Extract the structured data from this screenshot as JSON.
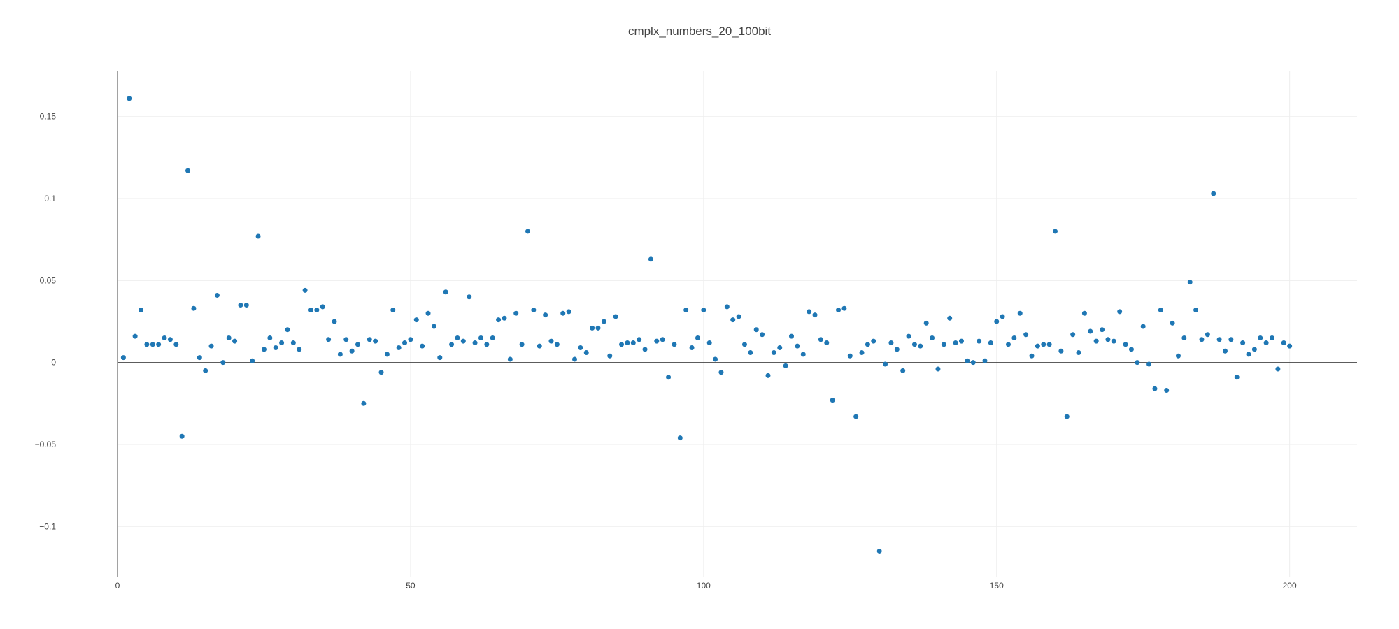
{
  "chart_data": {
    "type": "scatter",
    "title": "cmplx_numbers_20_100bit",
    "xlabel": "",
    "ylabel": "",
    "xlim": [
      0,
      211.5
    ],
    "ylim": [
      -0.131,
      0.178
    ],
    "grid": true,
    "marker_color": "#1f77b4",
    "x_ticks": [
      0,
      50,
      100,
      150,
      200
    ],
    "x_tick_labels": [
      "0",
      "50",
      "100",
      "150",
      "200"
    ],
    "y_ticks": [
      -0.1,
      -0.05,
      0,
      0.05,
      0.1,
      0.15
    ],
    "y_tick_labels": [
      "−0.1",
      "−0.05",
      "0",
      "0.05",
      "0.1",
      "0.15"
    ],
    "series": [
      {
        "x": [
          1,
          2,
          3,
          4,
          5,
          6,
          7,
          8,
          9,
          10,
          11,
          12,
          13,
          14,
          15,
          16,
          17,
          18,
          19,
          20,
          21,
          22,
          23,
          24,
          25,
          26,
          27,
          28,
          29,
          30,
          31,
          32,
          33,
          34,
          35,
          36,
          37,
          38,
          39,
          40,
          41,
          42,
          43,
          44,
          45,
          46,
          47,
          48,
          49,
          50,
          51,
          52,
          53,
          54,
          55,
          56,
          57,
          58,
          59,
          60,
          61,
          62,
          63,
          64,
          65,
          66,
          67,
          68,
          69,
          70,
          71,
          72,
          73,
          74,
          75,
          76,
          77,
          78,
          79,
          80,
          81,
          82,
          83,
          84,
          85,
          86,
          87,
          88,
          89,
          90,
          91,
          92,
          93,
          94,
          95,
          96,
          97,
          98,
          99,
          100,
          101,
          102,
          103,
          104,
          105,
          106,
          107,
          108,
          109,
          110,
          111,
          112,
          113,
          114,
          115,
          116,
          117,
          118,
          119,
          120,
          121,
          122,
          123,
          124,
          125,
          126,
          127,
          128,
          129,
          130,
          131,
          132,
          133,
          134,
          135,
          136,
          137,
          138,
          139,
          140,
          141,
          142,
          143,
          144,
          145,
          146,
          147,
          148,
          149,
          150,
          151,
          152,
          153,
          154,
          155,
          156,
          157,
          158,
          159,
          160,
          161,
          162,
          163,
          164,
          165,
          166,
          167,
          168,
          169,
          170,
          171,
          172,
          173,
          174,
          175,
          176,
          177,
          178,
          179,
          180,
          181,
          182,
          183,
          184,
          185,
          186,
          187,
          188,
          189,
          190,
          191,
          192,
          193,
          194,
          195,
          196,
          197,
          198,
          199,
          200
        ],
        "y": [
          0.003,
          0.161,
          0.016,
          0.032,
          0.011,
          0.011,
          0.011,
          0.015,
          0.014,
          0.011,
          -0.045,
          0.117,
          0.033,
          0.003,
          -0.005,
          0.01,
          0.041,
          0.0,
          0.015,
          0.013,
          0.035,
          0.035,
          0.001,
          0.077,
          0.008,
          0.015,
          0.009,
          0.012,
          0.02,
          0.012,
          0.008,
          0.044,
          0.032,
          0.032,
          0.034,
          0.014,
          0.025,
          0.005,
          0.014,
          0.007,
          0.011,
          -0.025,
          0.014,
          0.013,
          -0.006,
          0.005,
          0.032,
          0.009,
          0.012,
          0.014,
          0.026,
          0.01,
          0.03,
          0.022,
          0.003,
          0.043,
          0.011,
          0.015,
          0.013,
          0.04,
          0.012,
          0.015,
          0.011,
          0.015,
          0.026,
          0.027,
          0.002,
          0.03,
          0.011,
          0.08,
          0.032,
          0.01,
          0.029,
          0.013,
          0.011,
          0.03,
          0.031,
          0.002,
          0.009,
          0.006,
          0.021,
          0.021,
          0.025,
          0.004,
          0.028,
          0.011,
          0.012,
          0.012,
          0.014,
          0.008,
          0.063,
          0.013,
          0.014,
          -0.009,
          0.011,
          -0.046,
          0.032,
          0.009,
          0.015,
          0.032,
          0.012,
          0.002,
          -0.006,
          0.034,
          0.026,
          0.028,
          0.011,
          0.006,
          0.02,
          0.017,
          -0.008,
          0.006,
          0.009,
          -0.002,
          0.016,
          0.01,
          0.005,
          0.031,
          0.029,
          0.014,
          0.012,
          -0.023,
          0.032,
          0.033,
          0.004,
          -0.033,
          0.006,
          0.011,
          0.013,
          -0.115,
          -0.001,
          0.012,
          0.008,
          -0.005,
          0.016,
          0.011,
          0.01,
          0.024,
          0.015,
          -0.004,
          0.011,
          0.027,
          0.012,
          0.013,
          0.001,
          0.0,
          0.013,
          0.001,
          0.012,
          0.025,
          0.028,
          0.011,
          0.015,
          0.03,
          0.017,
          0.004,
          0.01,
          0.011,
          0.011,
          0.08,
          0.007,
          -0.033,
          0.017,
          0.006,
          0.03,
          0.019,
          0.013,
          0.02,
          0.014,
          0.013,
          0.031,
          0.011,
          0.008,
          0.0,
          0.022,
          -0.001,
          -0.016,
          0.032,
          -0.017,
          0.024,
          0.004,
          0.015,
          0.049,
          0.032,
          0.014,
          0.017,
          0.103,
          0.014,
          0.007,
          0.014,
          -0.009,
          0.012,
          0.005,
          0.008,
          0.015,
          0.012,
          0.015,
          -0.004,
          0.012,
          0.01
        ]
      }
    ]
  }
}
